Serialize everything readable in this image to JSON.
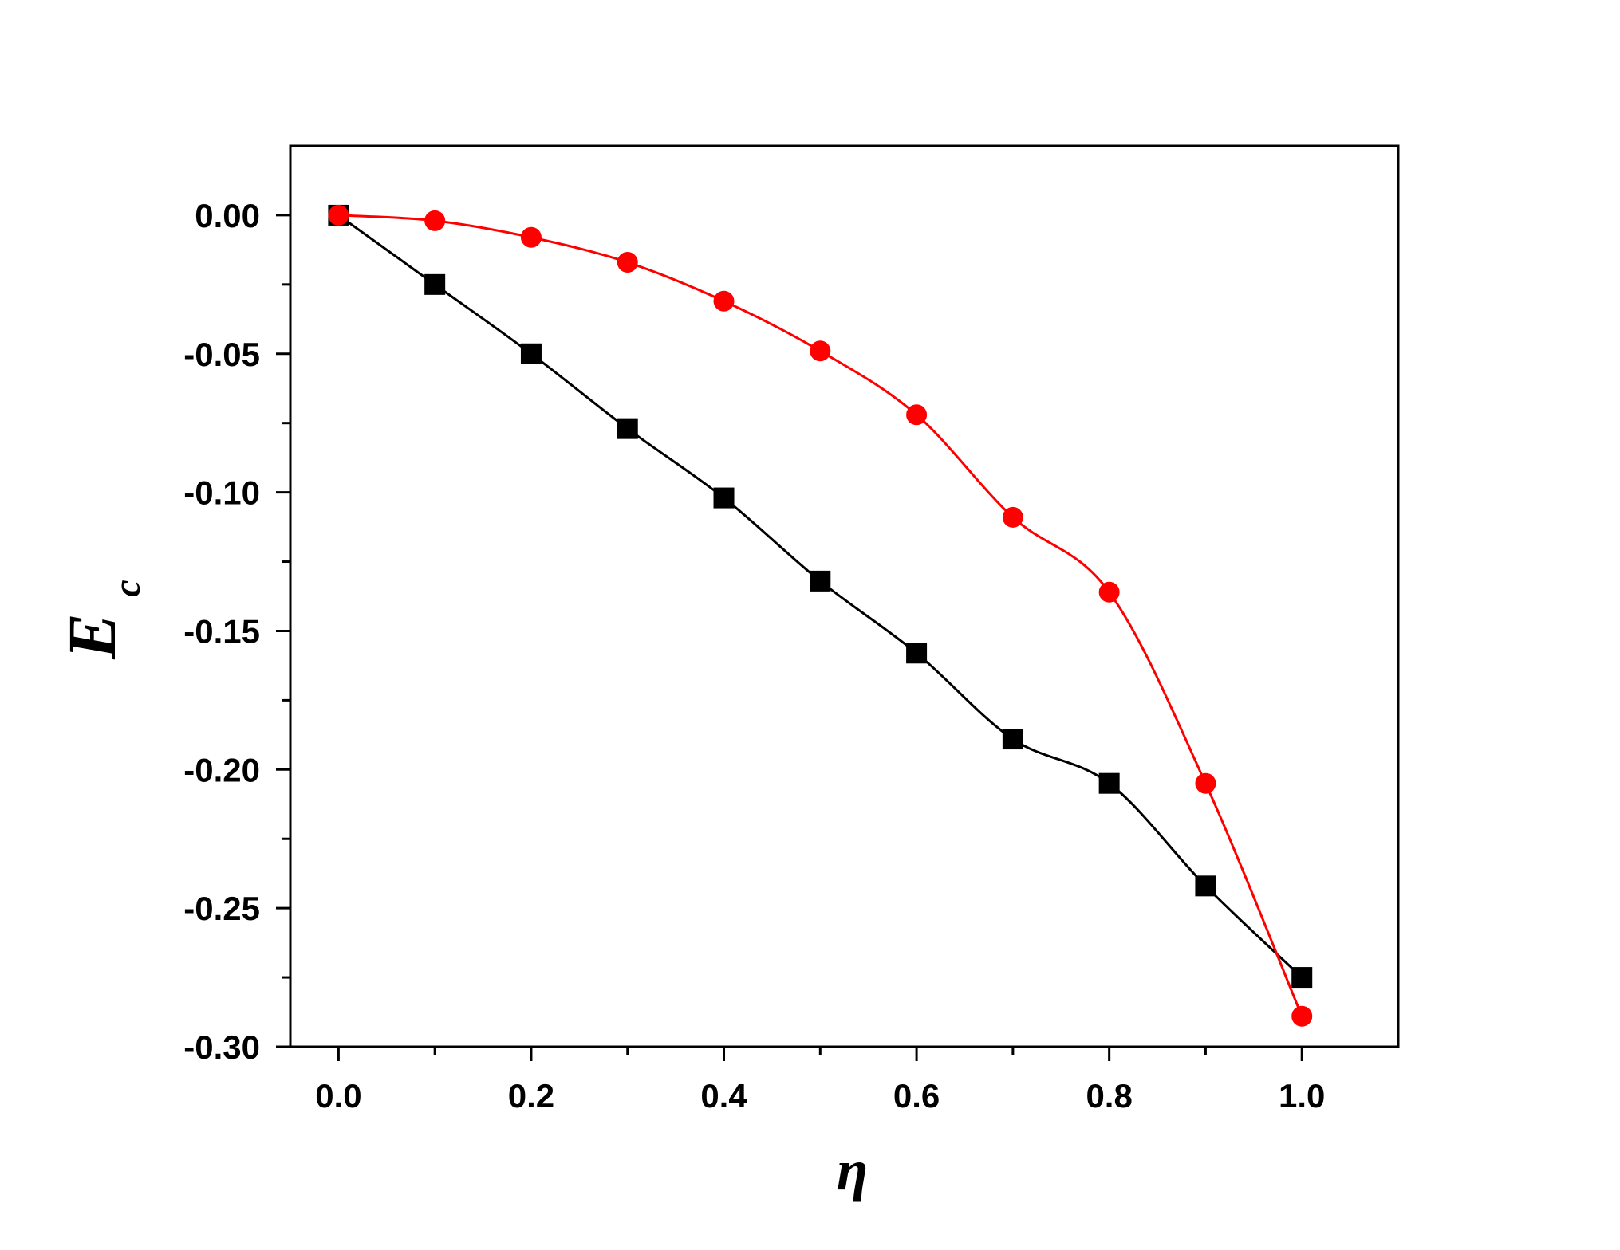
{
  "chart_data": {
    "type": "line",
    "title": "",
    "xlabel": "η",
    "ylabel_main": "E",
    "ylabel_sub": "c",
    "xlim": [
      -0.05,
      1.1
    ],
    "ylim": [
      -0.3,
      0.025
    ],
    "xticks": [
      0.0,
      0.2,
      0.4,
      0.6,
      0.8,
      1.0
    ],
    "xtick_labels": [
      "0.0",
      "0.2",
      "0.4",
      "0.6",
      "0.8",
      "1.0"
    ],
    "xminor_ticks": [
      0.1,
      0.3,
      0.5,
      0.7,
      0.9
    ],
    "yticks": [
      0.0,
      -0.05,
      -0.1,
      -0.15,
      -0.2,
      -0.25,
      -0.3
    ],
    "ytick_labels": [
      "0.00",
      "-0.05",
      "-0.10",
      "-0.15",
      "-0.20",
      "-0.25",
      "-0.30"
    ],
    "yminor_ticks": [
      -0.025,
      -0.075,
      -0.125,
      -0.175,
      -0.225,
      -0.275
    ],
    "grid": false,
    "series": [
      {
        "marker": "square",
        "color": "#000000",
        "x": [
          0.0,
          0.1,
          0.2,
          0.3,
          0.4,
          0.5,
          0.6,
          0.7,
          0.8,
          0.9,
          1.0
        ],
        "y": [
          0.0,
          -0.025,
          -0.05,
          -0.077,
          -0.102,
          -0.132,
          -0.158,
          -0.189,
          -0.205,
          -0.242,
          -0.275
        ]
      },
      {
        "marker": "circle",
        "color": "#ff0000",
        "x": [
          0.0,
          0.1,
          0.2,
          0.3,
          0.4,
          0.5,
          0.6,
          0.7,
          0.8,
          0.9,
          1.0
        ],
        "y": [
          0.0,
          -0.002,
          -0.008,
          -0.017,
          -0.031,
          -0.049,
          -0.072,
          -0.109,
          -0.136,
          -0.205,
          -0.289
        ]
      }
    ]
  }
}
